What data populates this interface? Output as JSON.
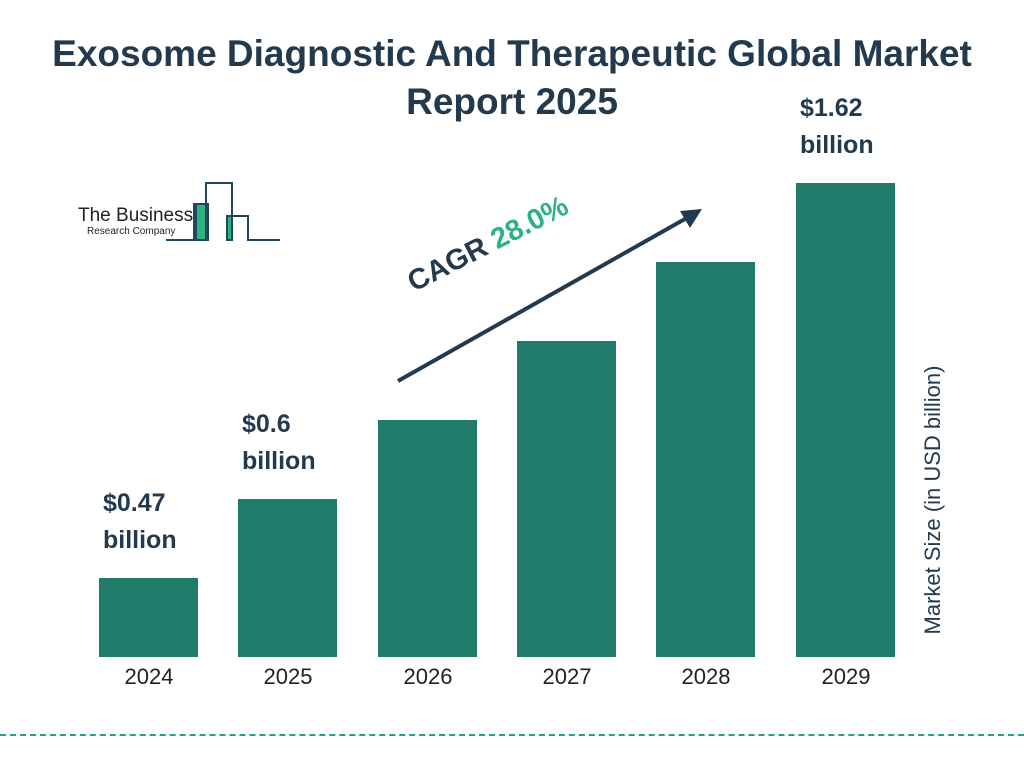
{
  "chart_data": {
    "type": "bar",
    "title": "Exosome Diagnostic And Therapeutic Global Market Report 2025",
    "categories": [
      "2024",
      "2025",
      "2026",
      "2027",
      "2028",
      "2029"
    ],
    "values": [
      0.47,
      0.6,
      0.77,
      0.98,
      1.26,
      1.62
    ],
    "data_labels": {
      "0": "$0.47 billion",
      "1": "$0.6 billion",
      "5": "$1.62 billion"
    },
    "labels": [
      [
        "$0.47",
        "billion"
      ],
      [
        "$0.6",
        "billion"
      ],
      null,
      null,
      null,
      [
        "$1.62",
        "billion"
      ]
    ],
    "ylabel": "Market Size (in USD billion)",
    "xlabel": "",
    "annotation": {
      "prefix": "CAGR",
      "value": "28.0%"
    },
    "grid": false,
    "bar_color": "#217b6b",
    "accent_color": "#2db383"
  },
  "logo": {
    "line1": "The Business",
    "line2": "Research Company"
  }
}
